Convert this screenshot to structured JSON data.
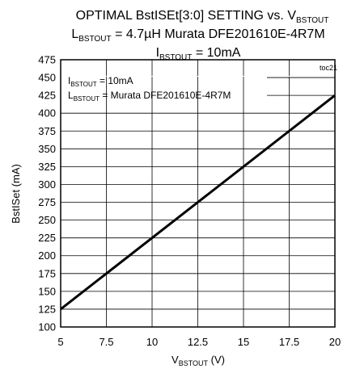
{
  "chart_data": {
    "type": "line",
    "title": {
      "line1_main": "OPTIMAL BstISEt[3:0] SETTING vs. V",
      "line1_sub": "BSTOUT",
      "line2_main": "L",
      "line2_sub": "BSTOUT",
      "line2_rest": " = 4.7µH Murata DFE201610E-4R7M",
      "line3_main": "I",
      "line3_sub": "BSTOUT",
      "line3_rest": " = 10mA"
    },
    "tag": "toc21",
    "xlabel": {
      "main": "V",
      "sub": "BSTOUT",
      "rest": " (V)"
    },
    "ylabel": "BstISet (mA)",
    "xlim": [
      5,
      20
    ],
    "ylim": [
      100,
      475
    ],
    "x_ticks": [
      "5",
      "7.5",
      "10",
      "12.5",
      "15",
      "17.5",
      "20"
    ],
    "y_ticks": [
      "475",
      "450",
      "425",
      "400",
      "375",
      "350",
      "325",
      "300",
      "275",
      "250",
      "225",
      "200",
      "175",
      "150",
      "125",
      "100"
    ],
    "grid": true,
    "annotations": {
      "line1_main": "I",
      "line1_sub": "BSTOUT",
      "line1_rest": " = 10mA",
      "line2_main": "L",
      "line2_sub": "BSTOUT",
      "line2_rest": " = Murata DFE201610E-4R7M"
    },
    "series": [
      {
        "x": [
          5,
          20
        ],
        "y": [
          125,
          425
        ],
        "color": "#000000"
      }
    ]
  }
}
